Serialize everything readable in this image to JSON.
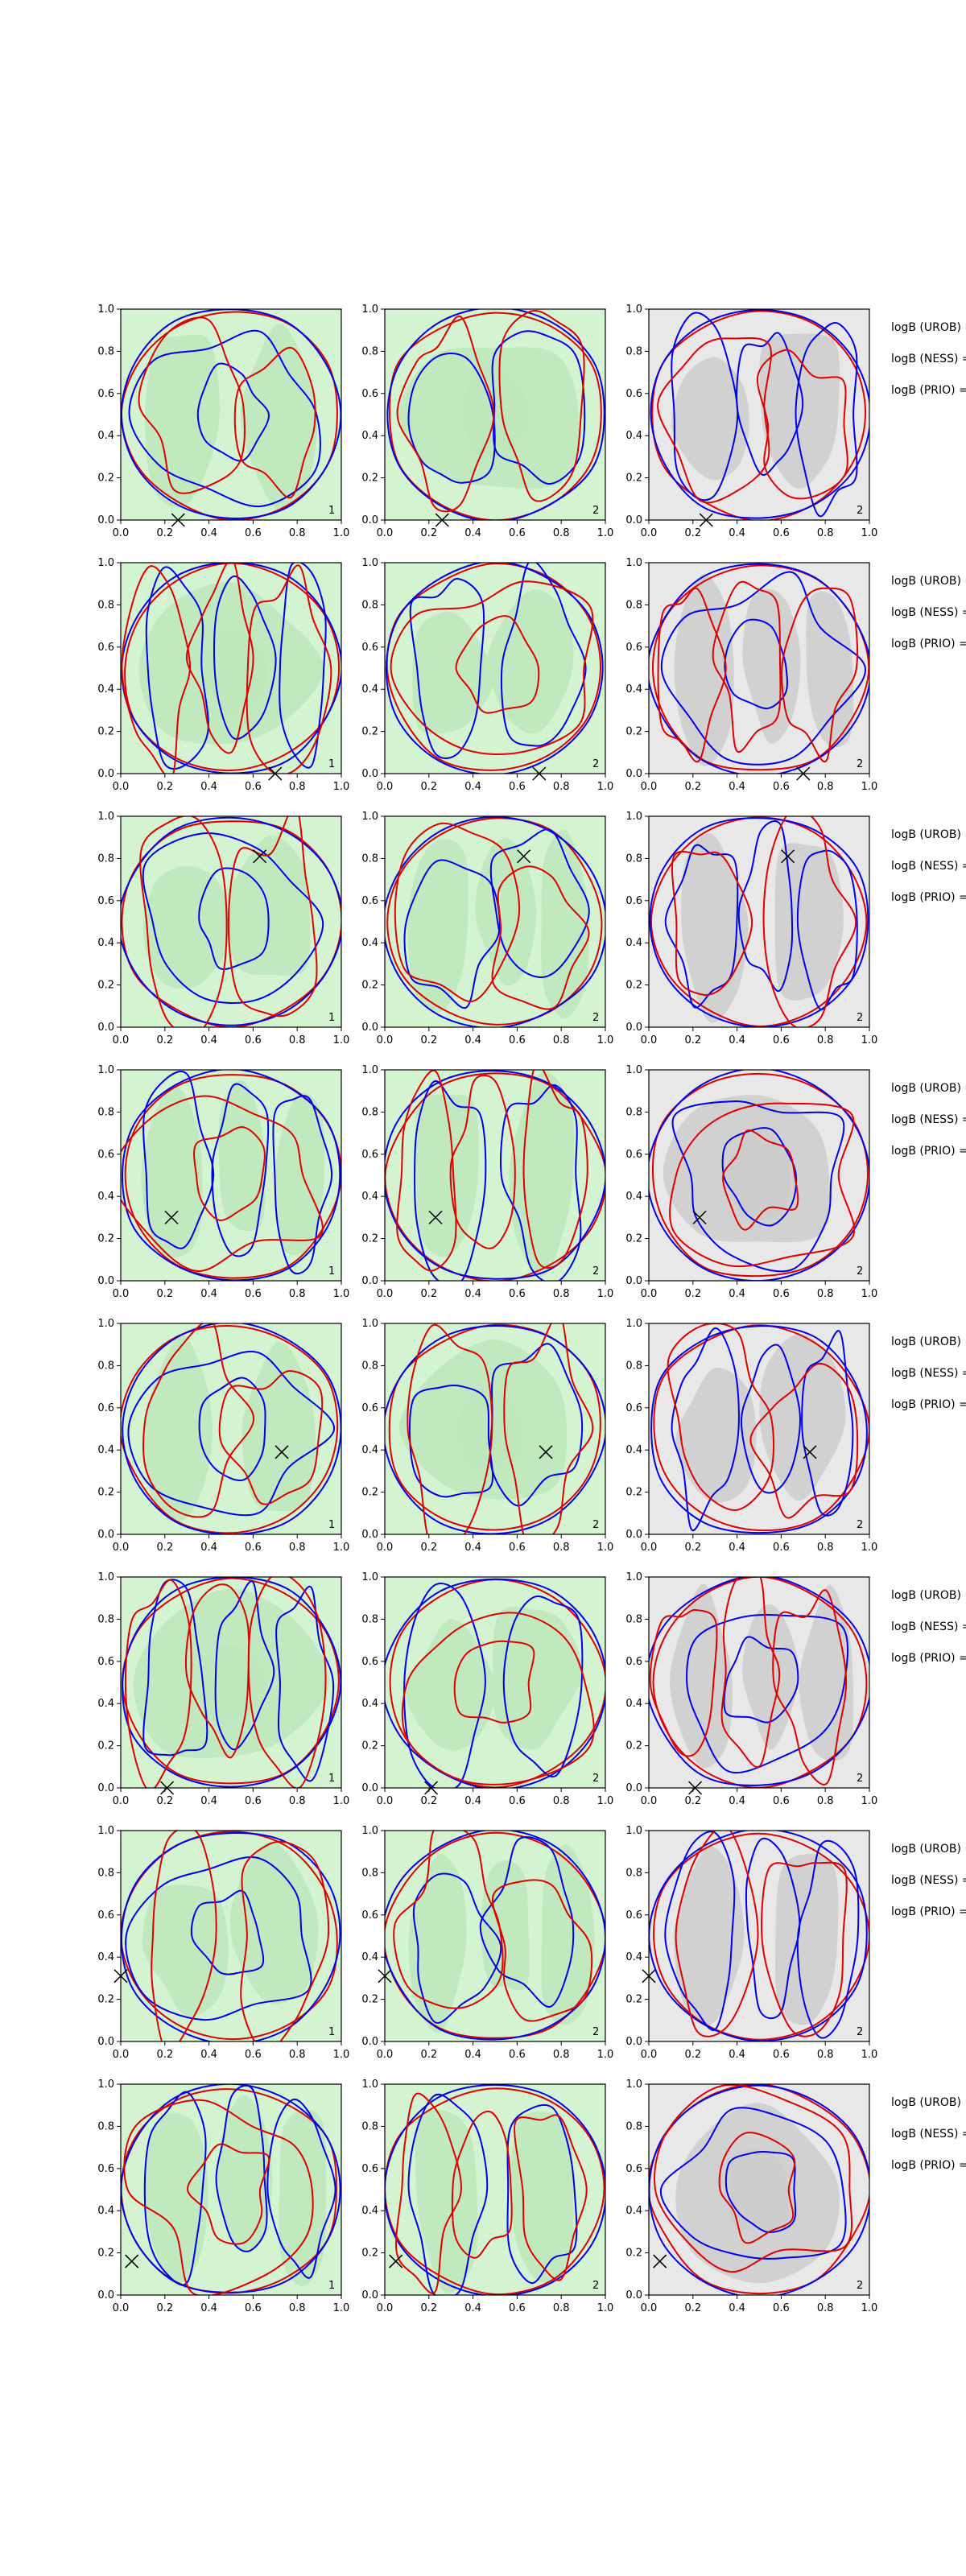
{
  "colors": {
    "bg_green": "#d3f3d1",
    "bg_green_light": "#e6f8e4",
    "region_green": "#bde6bd",
    "bg_gray": "#e8e8e8",
    "region_gray": "#cccccc",
    "contour_blue": "#0000ee",
    "contour_red": "#e00000",
    "marker": "#000000"
  },
  "chart_data": {
    "type": "contour",
    "layout": "8 rows x 3 panels, plus text annotations on the right of each row",
    "xlim": [
      0.0,
      1.0
    ],
    "ylim": [
      0.0,
      1.0
    ],
    "xticks": [
      "0.0",
      "0.2",
      "0.4",
      "0.6",
      "0.8",
      "1.0"
    ],
    "yticks": [
      "0.0",
      "0.2",
      "0.4",
      "0.6",
      "0.8",
      "1.0"
    ],
    "columns": [
      {
        "background": "green",
        "corner_label": "1"
      },
      {
        "background": "green",
        "corner_label": "2"
      },
      {
        "background": "gray",
        "corner_label": "2"
      }
    ],
    "annotation_labels": [
      "logB (UROB) =",
      "logB (NESS) =",
      "logB (PRIO) ="
    ],
    "rows": [
      {
        "marker": [
          0.26,
          0.0
        ]
      },
      {
        "marker": [
          0.7,
          0.0
        ]
      },
      {
        "marker": [
          0.63,
          0.81
        ]
      },
      {
        "marker": [
          0.23,
          0.3
        ]
      },
      {
        "marker": [
          0.73,
          0.39
        ]
      },
      {
        "marker": [
          0.21,
          0.0
        ]
      },
      {
        "marker": [
          0.0,
          0.31
        ]
      },
      {
        "marker": [
          0.05,
          0.16
        ]
      }
    ],
    "marker_shape": "x"
  }
}
